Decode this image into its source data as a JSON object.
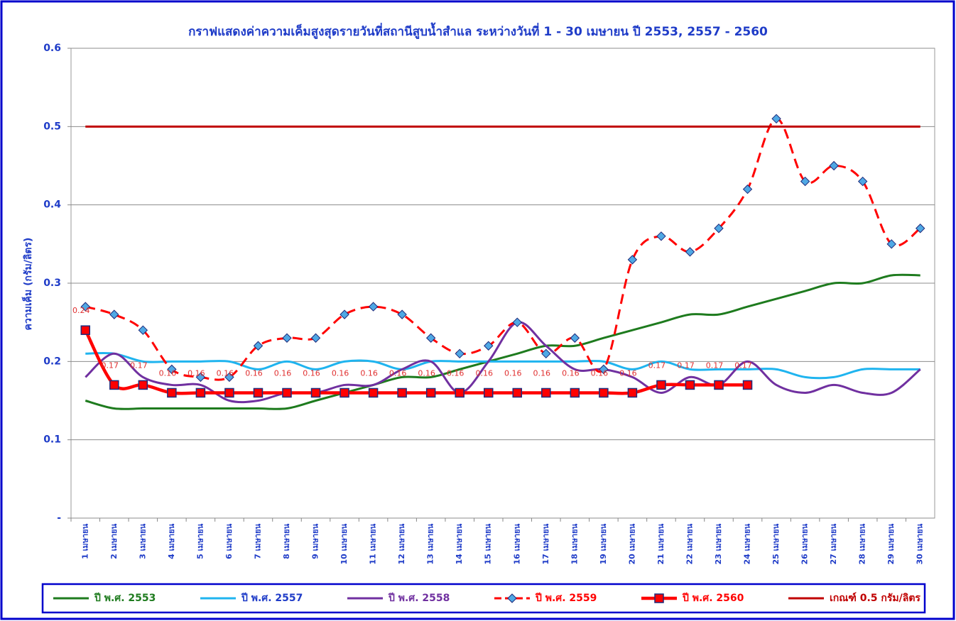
{
  "chart_data": {
    "type": "line",
    "title": "กราฟแสดงค่าความเค็มสูงสุดรายวันที่สถานีสูบน้ำสำแล ระหว่างวันที่ 1 - 30 เมษายน ปี 2553, 2557 - 2560",
    "y_label": "ความเค็ม (กรัม/ลิตร)",
    "categories": [
      "1 เมษายน",
      "2 เมษายน",
      "3 เมษายน",
      "4 เมษายน",
      "5 เมษายน",
      "6 เมษายน",
      "7 เมษายน",
      "8 เมษายน",
      "9 เมษายน",
      "10 เมษายน",
      "11 เมษายน",
      "12 เมษายน",
      "13 เมษายน",
      "14 เมษายน",
      "15 เมษายน",
      "16 เมษายน",
      "17 เมษายน",
      "18 เมษายน",
      "19 เมษายน",
      "20 เมษายน",
      "21 เมษายน",
      "22 เมษายน",
      "23 เมษายน",
      "24 เมษายน",
      "25 เมษายน",
      "26 เมษายน",
      "27 เมษายน",
      "28 เมษายน",
      "29 เมษายน",
      "30 เมษายน"
    ],
    "ylim": [
      0,
      0.6
    ],
    "yticks": [
      {
        "value": 0,
        "label": "-"
      },
      0.1,
      0.2,
      0.3,
      0.4,
      0.5,
      0.6
    ],
    "grid": true,
    "legend": "bottom",
    "series": [
      {
        "name": "ปี พ.ศ. 2553",
        "color": "#1e7b1e",
        "values": [
          0.15,
          0.14,
          0.14,
          0.14,
          0.14,
          0.14,
          0.14,
          0.14,
          0.15,
          0.16,
          0.17,
          0.18,
          0.18,
          0.19,
          0.2,
          0.21,
          0.22,
          0.22,
          0.23,
          0.24,
          0.25,
          0.26,
          0.26,
          0.27,
          0.28,
          0.29,
          0.3,
          0.3,
          0.31,
          0.31
        ]
      },
      {
        "name": "ปี พ.ศ. 2557",
        "color": "#1fb4ef",
        "values": [
          0.21,
          0.21,
          0.2,
          0.2,
          0.2,
          0.2,
          0.19,
          0.2,
          0.19,
          0.2,
          0.2,
          0.19,
          0.2,
          0.2,
          0.2,
          0.2,
          0.2,
          0.2,
          0.2,
          0.19,
          0.2,
          0.19,
          0.19,
          0.19,
          0.19,
          0.18,
          0.18,
          0.19,
          0.19,
          0.19
        ]
      },
      {
        "name": "ปี พ.ศ. 2558",
        "color": "#7030a0",
        "values": [
          0.18,
          0.21,
          0.18,
          0.17,
          0.17,
          0.15,
          0.15,
          0.16,
          0.16,
          0.17,
          0.17,
          0.19,
          0.2,
          0.16,
          0.2,
          0.25,
          0.22,
          0.19,
          0.19,
          0.18,
          0.16,
          0.18,
          0.17,
          0.2,
          0.17,
          0.16,
          0.17,
          0.16,
          0.16,
          0.19
        ]
      },
      {
        "name": "ปี พ.ศ. 2559",
        "color": "#ff0000",
        "dashed": true,
        "marker": "diamond",
        "values": [
          0.27,
          0.26,
          0.24,
          0.19,
          0.18,
          0.18,
          0.22,
          0.23,
          0.23,
          0.26,
          0.27,
          0.26,
          0.23,
          0.21,
          0.22,
          0.25,
          0.21,
          0.23,
          0.19,
          0.33,
          0.36,
          0.34,
          0.37,
          0.42,
          0.51,
          0.43,
          0.45,
          0.43,
          0.35,
          0.37
        ]
      },
      {
        "name": "ปี พ.ศ. 2560",
        "color": "#ff0000",
        "marker": "square",
        "data_labels": true,
        "values": [
          0.24,
          0.17,
          0.17,
          0.16,
          0.16,
          0.16,
          0.16,
          0.16,
          0.16,
          0.16,
          0.16,
          0.16,
          0.16,
          0.16,
          0.16,
          0.16,
          0.16,
          0.16,
          0.16,
          0.16,
          0.17,
          0.17,
          0.17,
          0.17,
          null,
          null,
          null,
          null,
          null,
          null
        ]
      },
      {
        "name": "เกณฑ์ 0.5 กรัม/ลิตร",
        "color": "#c00000",
        "straight": true,
        "values": [
          0.5,
          0.5,
          0.5,
          0.5,
          0.5,
          0.5,
          0.5,
          0.5,
          0.5,
          0.5,
          0.5,
          0.5,
          0.5,
          0.5,
          0.5,
          0.5,
          0.5,
          0.5,
          0.5,
          0.5,
          0.5,
          0.5,
          0.5,
          0.5,
          0.5,
          0.5,
          0.5,
          0.5,
          0.5,
          0.5
        ]
      }
    ]
  }
}
